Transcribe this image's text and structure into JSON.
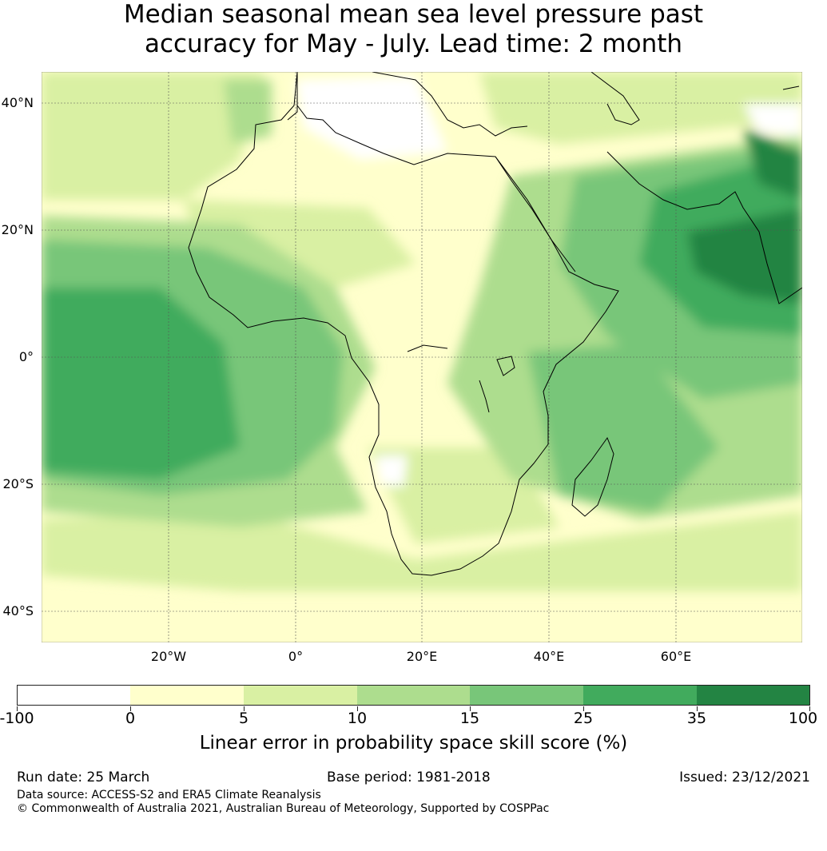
{
  "title": {
    "line1": "Median seasonal mean sea level pressure past",
    "line2": "accuracy for May - July. Lead time: 2 month"
  },
  "map": {
    "region": "Africa",
    "lat_labels": [
      "40°N",
      "20°N",
      "0°",
      "20°S",
      "40°S"
    ],
    "lon_labels": [
      "20°W",
      "0°",
      "20°E",
      "40°E",
      "60°E"
    ]
  },
  "colorbar": {
    "ticks": [
      "-100",
      "0",
      "5",
      "10",
      "15",
      "25",
      "35",
      "100"
    ],
    "colors": [
      "#ffffff",
      "#ffffcc",
      "#d9f0a3",
      "#addd8e",
      "#78c679",
      "#41ab5d",
      "#238443"
    ],
    "title": "Linear error in probability space skill score (%)"
  },
  "footer": {
    "run_date": "Run date: 25 March",
    "base_period": "Base period: 1981-2018",
    "issued": "Issued: 23/12/2021",
    "data_source": "Data source: ACCESS-S2 and ERA5 Climate Reanalysis",
    "copyright": "© Commonwealth of Australia 2021, Australian Bureau of Meteorology, Supported by COSPPac"
  }
}
